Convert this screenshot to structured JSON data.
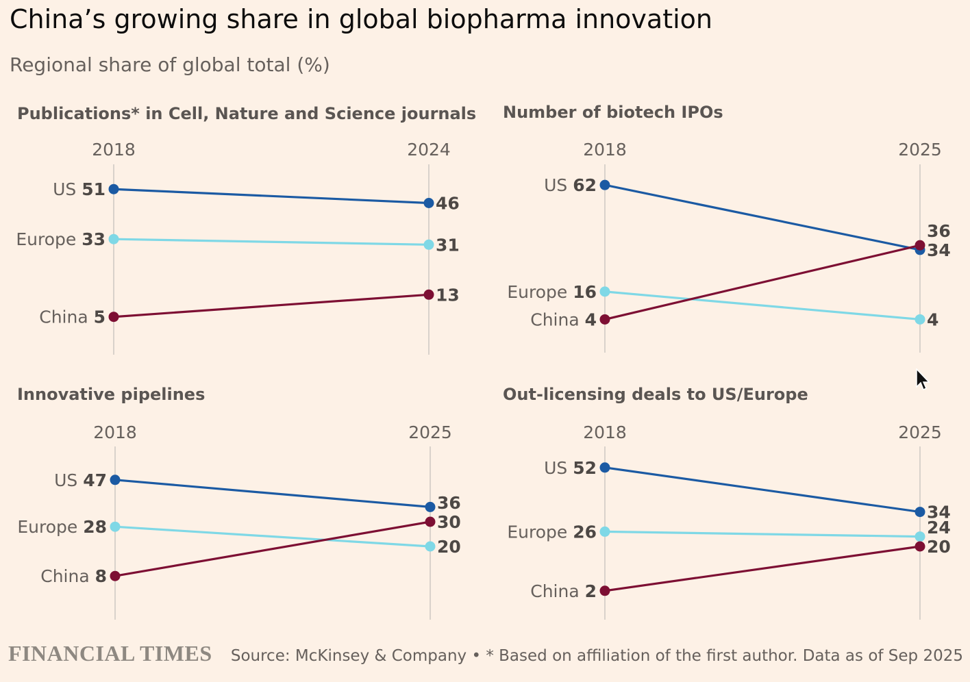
{
  "title": "China’s growing share in global biopharma innovation",
  "subtitle": "Regional share of global total (%)",
  "footer": {
    "logo": "FINANCIAL TIMES",
    "source": "Source: McKinsey & Company • * Based on affiliation of the first author. Data as of Sep 2025"
  },
  "colors": {
    "US": "#1b5aa3",
    "Europe": "#7fd8e6",
    "China": "#7d0f33",
    "axis_line": "#d9d2cb",
    "label_text": "#66605c",
    "value_text": "#4d4845",
    "panel_title": "#5a5552",
    "background": "#fdf1e6"
  },
  "chart_data": [
    {
      "type": "line",
      "title": "Publications* in Cell, Nature and Science journals",
      "x": [
        "2018",
        "2024"
      ],
      "series": [
        {
          "name": "US",
          "values": [
            51,
            46
          ]
        },
        {
          "name": "Europe",
          "values": [
            33,
            31
          ]
        },
        {
          "name": "China",
          "values": [
            5,
            13
          ]
        }
      ]
    },
    {
      "type": "line",
      "title": "Number of biotech IPOs",
      "x": [
        "2018",
        "2025"
      ],
      "series": [
        {
          "name": "US",
          "values": [
            62,
            34
          ]
        },
        {
          "name": "Europe",
          "values": [
            16,
            4
          ]
        },
        {
          "name": "China",
          "values": [
            4,
            36
          ]
        }
      ]
    },
    {
      "type": "line",
      "title": "Innovative pipelines",
      "x": [
        "2018",
        "2025"
      ],
      "series": [
        {
          "name": "US",
          "values": [
            47,
            36
          ]
        },
        {
          "name": "Europe",
          "values": [
            28,
            20
          ]
        },
        {
          "name": "China",
          "values": [
            8,
            30
          ]
        }
      ]
    },
    {
      "type": "line",
      "title": "Out-licensing deals to US/Europe",
      "x": [
        "2018",
        "2025"
      ],
      "series": [
        {
          "name": "US",
          "values": [
            52,
            34
          ]
        },
        {
          "name": "Europe",
          "values": [
            26,
            24
          ]
        },
        {
          "name": "China",
          "values": [
            2,
            20
          ]
        }
      ]
    }
  ]
}
